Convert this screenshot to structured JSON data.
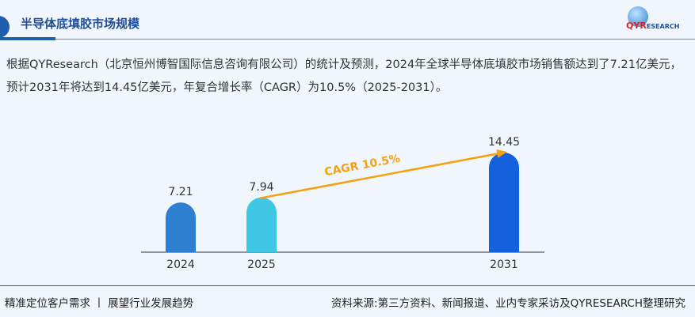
{
  "header": {
    "title": "半导体底填胶市场规模",
    "logo_text": "QYRESEARCH",
    "logo_prefix": "QY",
    "logo_mid": "R",
    "logo_suffix": "ESEARCH"
  },
  "description": "根据QYResearch（北京恒州博智国际信息咨询有限公司）的统计及预测，2024年全球半导体底填胶市场销售额达到了7.21亿美元，预计2031年将达到14.45亿美元，年复合增长率（CAGR）为10.5%（2025-2031）。",
  "chart_data": {
    "type": "bar",
    "categories": [
      "2024",
      "2025",
      "2031"
    ],
    "values": [
      7.21,
      7.94,
      14.45
    ],
    "data_labels": [
      "7.21",
      "7.94",
      "14.45"
    ],
    "colors": [
      "#2e7fd0",
      "#3ec8e4",
      "#1560dc"
    ],
    "annotation": {
      "text": "CAGR 10.5%",
      "from": "2025",
      "to": "2031",
      "color": "#f5a00f"
    },
    "ylim": [
      0,
      16
    ],
    "grid": false
  },
  "footer": {
    "left": "精准定位客户需求 丨 展望行业发展趋势",
    "right": "资料来源:第三方资料、新闻报道、业内专家采访及QYRESEARCH整理研究"
  }
}
